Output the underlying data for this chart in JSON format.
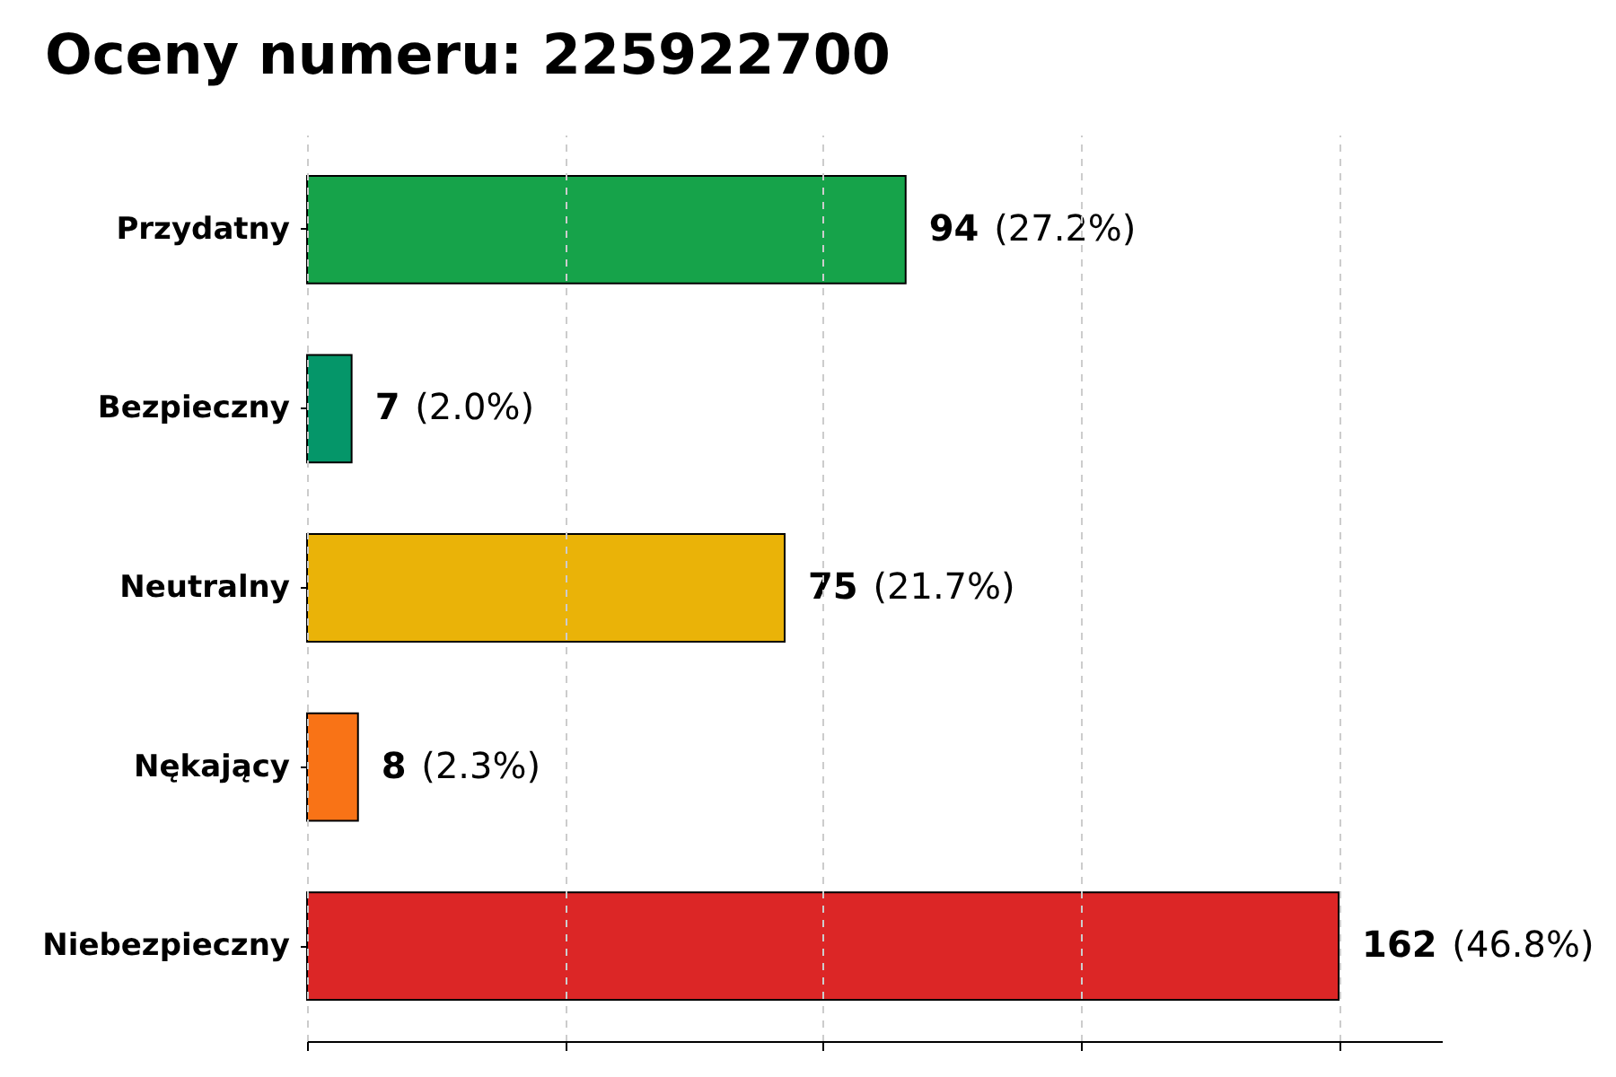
{
  "chart_data": {
    "type": "bar",
    "orientation": "horizontal",
    "title": "Oceny numeru: 225922700",
    "categories": [
      "Przydatny",
      "Bezpieczny",
      "Neutralny",
      "Nękający",
      "Niebezpieczny"
    ],
    "values": [
      94,
      7,
      75,
      8,
      162
    ],
    "colors": [
      "#16a34a",
      "#059669",
      "#eab308",
      "#f97316",
      "#dc2626"
    ],
    "value_labels": [
      "94 (27.2%)",
      "7 (2.0%)",
      "75 (21.7%)",
      "8 (2.3%)",
      "162 (46.8%)"
    ],
    "xlim": [
      0,
      178.2
    ],
    "xticks": [
      {
        "value": 0,
        "label": null
      },
      {
        "value": 40.5,
        "label": null
      },
      {
        "value": 81,
        "label": null
      },
      {
        "value": 121.5,
        "label": null
      },
      {
        "value": 162,
        "label": null
      }
    ],
    "grid": "x",
    "tick_labels": "y"
  }
}
